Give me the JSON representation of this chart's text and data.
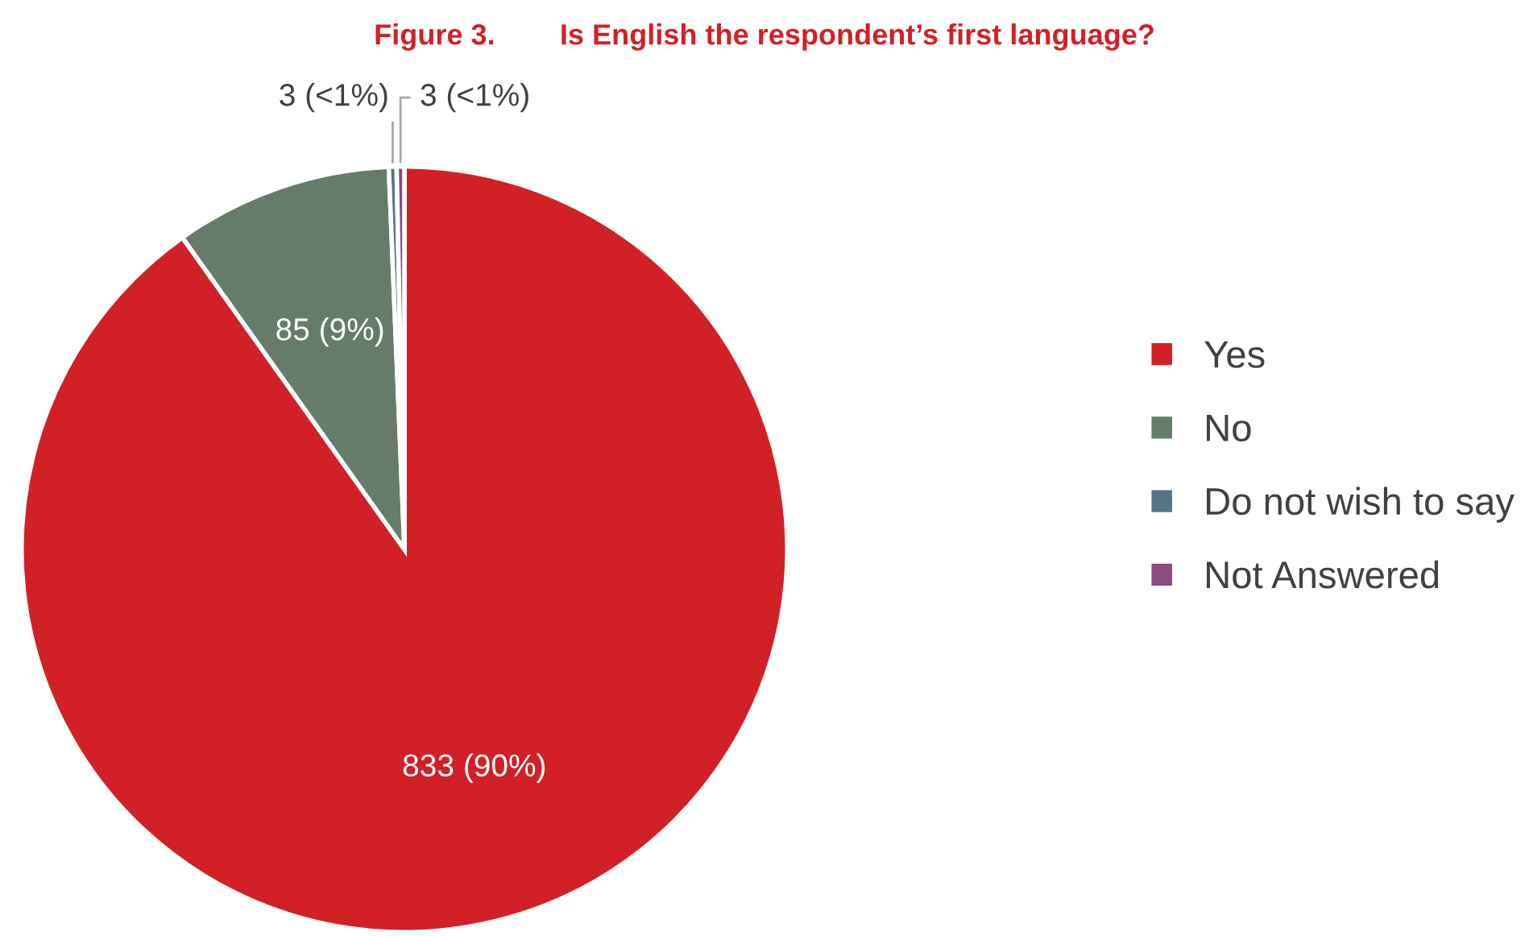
{
  "chart_data": {
    "type": "pie",
    "title": "Figure 3.        Is English the respondent’s first language?",
    "categories": [
      "Yes",
      "No",
      "Do not wish to say",
      "Not Answered"
    ],
    "values": [
      833,
      85,
      3,
      3
    ],
    "colors": [
      "#d22027",
      "#667c6b",
      "#587384",
      "#8d4a7e"
    ],
    "value_labels": [
      "833 (90%)",
      "85 (9%)",
      "3 (<1%)",
      "3 (<1%)"
    ],
    "legend": "right"
  }
}
